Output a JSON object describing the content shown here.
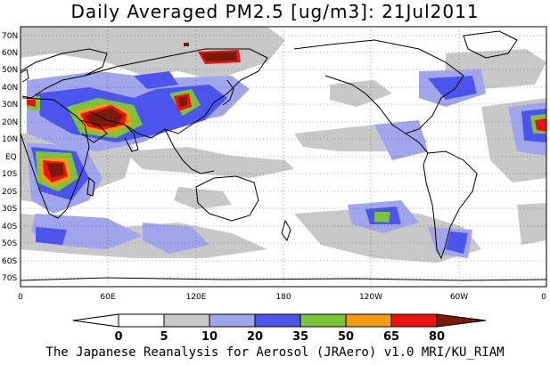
{
  "title": "Daily Averaged PM2.5 [ug/m3]: 21Jul2011",
  "footer": "The Japanese Reanalysis for Aerosol (JRAero) v1.0 MRI/KU_RIAM",
  "map": {
    "lat_labels": [
      "70N",
      "60N",
      "50N",
      "40N",
      "30N",
      "20N",
      "10N",
      "EQ",
      "10S",
      "20S",
      "30S",
      "40S",
      "50S",
      "60S",
      "70S"
    ],
    "lon_labels": [
      "0",
      "60E",
      "120E",
      "180",
      "120W",
      "60W",
      "0"
    ],
    "gridlines": "dotted"
  },
  "colorbar": {
    "levels": [
      "0",
      "5",
      "10",
      "20",
      "35",
      "50",
      "65",
      "80"
    ],
    "colors": [
      "#ffffff",
      "#c8c8c8",
      "#a0a5ec",
      "#4b55ee",
      "#7cc43a",
      "#f39c12",
      "#ee1111",
      "#7a1a0a"
    ]
  }
}
